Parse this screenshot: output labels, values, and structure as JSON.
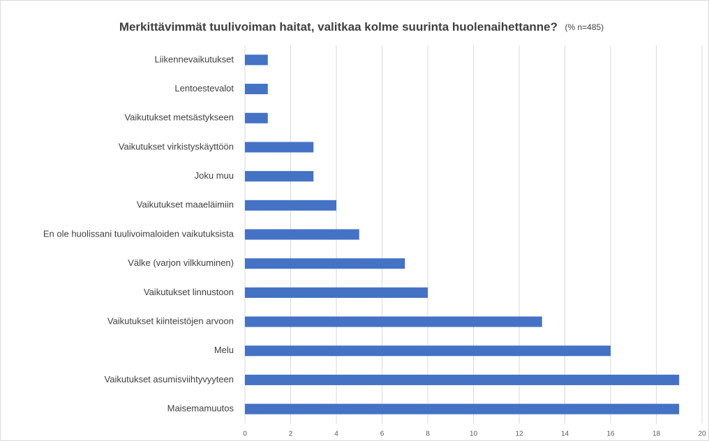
{
  "chart_data": {
    "type": "bar",
    "orientation": "horizontal",
    "title": "Merkittävimmät tuulivoiman haitat, valitkaa kolme suurinta huolenaihettanne?",
    "subtitle": "(% n=485)",
    "categories": [
      "Liikennevaikutukset",
      "Lentoestevalot",
      "Vaikutukset metsästykseen",
      "Vaikutukset virkistyskäyttöön",
      "Joku muu",
      "Vaikutukset maaeläimiin",
      "En ole huolissani tuulivoimaloiden vaikutuksista",
      "Välke (varjon vilkkuminen)",
      "Vaikutukset linnustoon",
      "Vaikutukset kiinteistöjen arvoon",
      "Melu",
      "Vaikutukset asumisviihtyvyyteen",
      "Maisemamuutos"
    ],
    "values": [
      1,
      1,
      1,
      3,
      3,
      4,
      5,
      7,
      8,
      13,
      16,
      19,
      19
    ],
    "color": "#4472c4",
    "xlim": [
      0,
      20
    ],
    "xticks": [
      0,
      2,
      4,
      6,
      8,
      10,
      12,
      14,
      16,
      18,
      20
    ],
    "grid": true
  }
}
